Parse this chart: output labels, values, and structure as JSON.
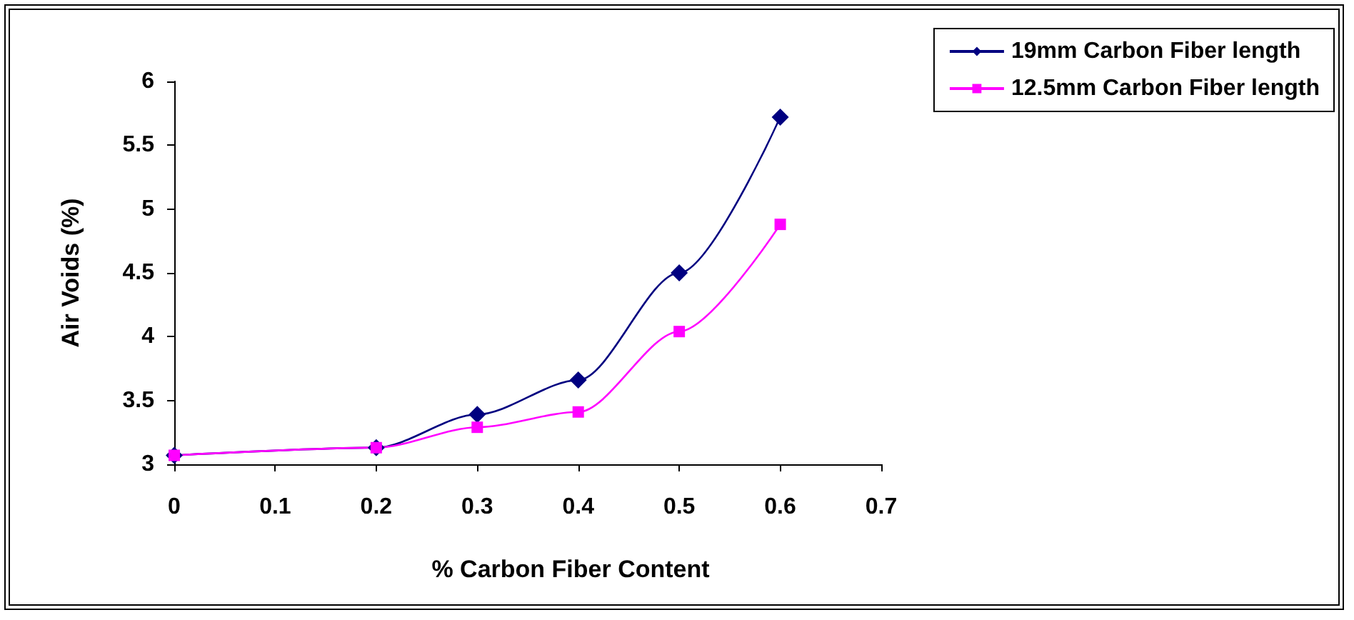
{
  "chart_data": {
    "type": "line",
    "xlabel": "% Carbon Fiber Content",
    "ylabel": "Air Voids (%)",
    "xlim": [
      0,
      0.7
    ],
    "xticks": [
      0,
      0.1,
      0.2,
      0.3,
      0.4,
      0.5,
      0.6,
      0.7
    ],
    "ylim": [
      3,
      6
    ],
    "yticks": [
      3,
      3.5,
      4,
      4.5,
      5,
      5.5,
      6
    ],
    "x": [
      0,
      0.2,
      0.3,
      0.4,
      0.5,
      0.6
    ],
    "series": [
      {
        "name": "19mm Carbon Fiber length",
        "color": "#000080",
        "marker": "diamond",
        "values": [
          3.07,
          3.13,
          3.39,
          3.66,
          4.5,
          5.72
        ]
      },
      {
        "name": "12.5mm Carbon Fiber length",
        "color": "#ff00ff",
        "marker": "square",
        "values": [
          3.07,
          3.13,
          3.29,
          3.41,
          4.04,
          4.88
        ]
      }
    ],
    "grid": false,
    "legend": "top right"
  }
}
